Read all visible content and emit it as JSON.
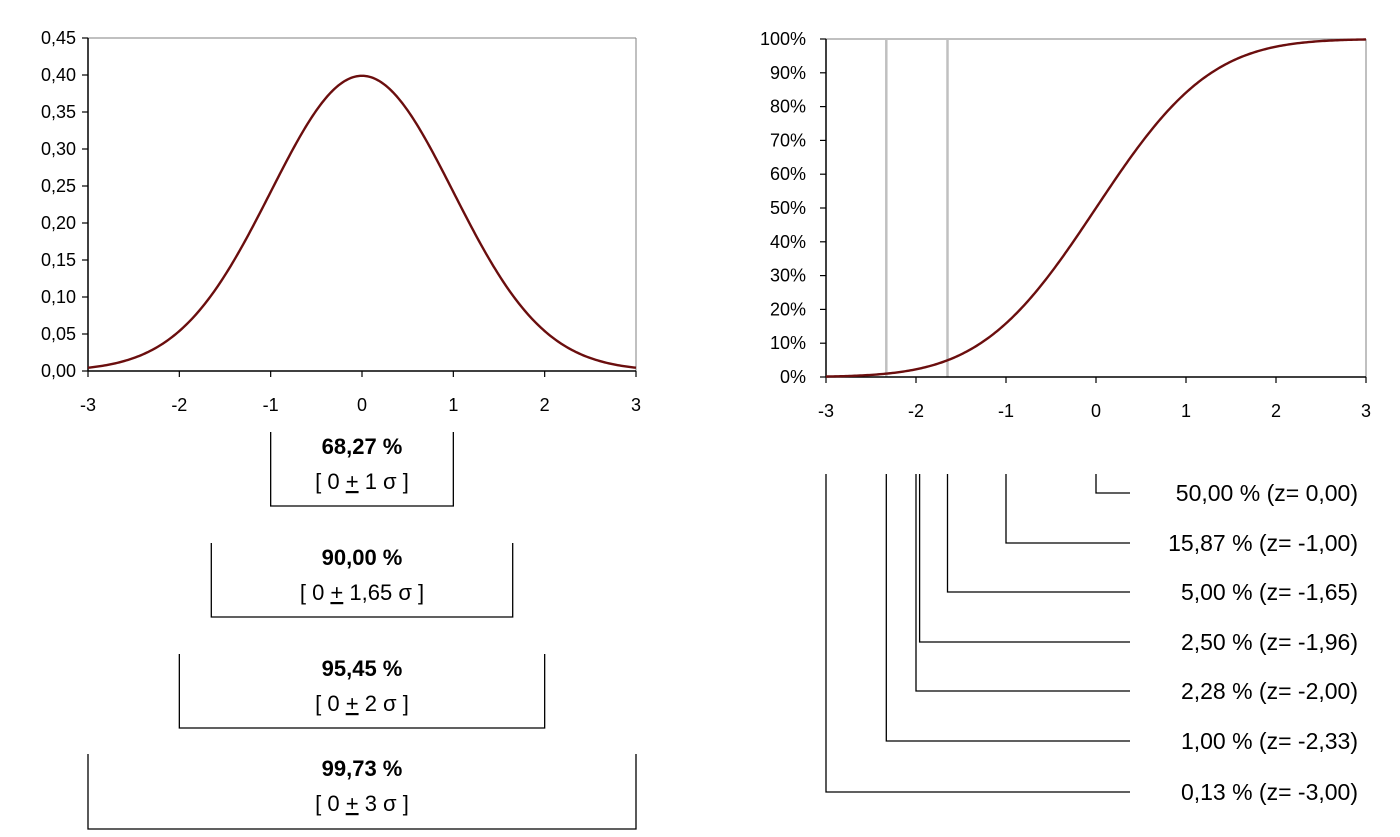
{
  "colors": {
    "curve": "#6b0e0e",
    "axis": "#000000",
    "frame": "#808080",
    "marker": "#c0c0c0",
    "background": "#ffffff"
  },
  "chart_data": [
    {
      "type": "line",
      "description": "pdf",
      "xlim": [
        -3,
        3
      ],
      "ylim": [
        0,
        0.45
      ],
      "x_ticks": [
        "-3",
        "-2",
        "-1",
        "0",
        "1",
        "2",
        "3"
      ],
      "y_ticks": [
        "0,00",
        "0,05",
        "0,10",
        "0,15",
        "0,20",
        "0,25",
        "0,30",
        "0,35",
        "0,40",
        "0,45"
      ],
      "series": [
        {
          "x": [
            -3,
            -2.5,
            -2,
            -1.5,
            -1,
            -0.5,
            0,
            0.5,
            1,
            1.5,
            2,
            2.5,
            3
          ],
          "y": [
            0.0044,
            0.0175,
            0.054,
            0.1295,
            0.242,
            0.352,
            0.3989,
            0.352,
            0.242,
            0.1295,
            0.054,
            0.0175,
            0.0044
          ]
        }
      ],
      "intervals": [
        {
          "x_from": -1,
          "x_to": 1,
          "percent": "68,27 %",
          "pre": "[ 0 ",
          "pm": "+",
          "post": " 1 σ ]"
        },
        {
          "x_from": -1.65,
          "x_to": 1.65,
          "percent": "90,00 %",
          "pre": "[ 0 ",
          "pm": "+",
          "post": " 1,65 σ ]"
        },
        {
          "x_from": -2,
          "x_to": 2,
          "percent": "95,45 %",
          "pre": "[ 0 ",
          "pm": "+",
          "post": " 2 σ ]"
        },
        {
          "x_from": -3,
          "x_to": 3,
          "percent": "99,73 %",
          "pre": "[ 0 ",
          "pm": "+",
          "post": " 3 σ ]"
        }
      ]
    },
    {
      "type": "line",
      "description": "cdf",
      "xlim": [
        -3,
        3
      ],
      "ylim": [
        0,
        1
      ],
      "x_ticks": [
        "-3",
        "-2",
        "-1",
        "0",
        "1",
        "2",
        "3"
      ],
      "y_ticks": [
        "0%",
        "10%",
        "20%",
        "30%",
        "40%",
        "50%",
        "60%",
        "70%",
        "80%",
        "90%",
        "100%"
      ],
      "series": [
        {
          "x": [
            -3,
            -2.5,
            -2,
            -1.5,
            -1,
            -0.5,
            0,
            0.5,
            1,
            1.5,
            2,
            2.5,
            3
          ],
          "y": [
            0.0013,
            0.0062,
            0.0228,
            0.0668,
            0.1587,
            0.3085,
            0.5,
            0.6915,
            0.8413,
            0.9332,
            0.9772,
            0.9938,
            0.9987
          ]
        }
      ],
      "marker_lines_x": [
        -2.33,
        -1.65
      ],
      "quantiles": [
        {
          "z": 0.0,
          "label": "50,00 % (z=  0,00)"
        },
        {
          "z": -1.0,
          "label": "15,87 % (z= -1,00)"
        },
        {
          "z": -1.65,
          "label": "5,00 % (z= -1,65)"
        },
        {
          "z": -1.96,
          "label": "2,50 % (z= -1,96)"
        },
        {
          "z": -2.0,
          "label": "2,28 % (z= -2,00)"
        },
        {
          "z": -2.33,
          "label": "1,00 % (z= -2,33)"
        },
        {
          "z": -3.0,
          "label": "0,13 % (z= -3,00)"
        }
      ]
    }
  ]
}
